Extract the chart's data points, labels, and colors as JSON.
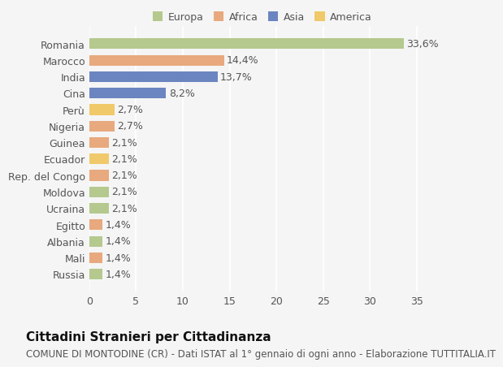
{
  "categories": [
    "Romania",
    "Marocco",
    "India",
    "Cina",
    "Perù",
    "Nigeria",
    "Guinea",
    "Ecuador",
    "Rep. del Congo",
    "Moldova",
    "Ucraina",
    "Egitto",
    "Albania",
    "Mali",
    "Russia"
  ],
  "values": [
    33.6,
    14.4,
    13.7,
    8.2,
    2.7,
    2.7,
    2.1,
    2.1,
    2.1,
    2.1,
    2.1,
    1.4,
    1.4,
    1.4,
    1.4
  ],
  "labels": [
    "33,6%",
    "14,4%",
    "13,7%",
    "8,2%",
    "2,7%",
    "2,7%",
    "2,1%",
    "2,1%",
    "2,1%",
    "2,1%",
    "2,1%",
    "1,4%",
    "1,4%",
    "1,4%",
    "1,4%"
  ],
  "colors": [
    "#b5c98e",
    "#e8a97e",
    "#6b85c0",
    "#6b85c0",
    "#f0c96a",
    "#e8a97e",
    "#e8a97e",
    "#f0c96a",
    "#e8a97e",
    "#b5c98e",
    "#b5c98e",
    "#e8a97e",
    "#b5c98e",
    "#e8a97e",
    "#b5c98e"
  ],
  "continent_colors": {
    "Europa": "#b5c98e",
    "Africa": "#e8a97e",
    "Asia": "#6b85c0",
    "America": "#f0c96a"
  },
  "xlim": [
    0,
    37
  ],
  "xticks": [
    0,
    5,
    10,
    15,
    20,
    25,
    30,
    35
  ],
  "title": "Cittadini Stranieri per Cittadinanza",
  "subtitle": "COMUNE DI MONTODINE (CR) - Dati ISTAT al 1° gennaio di ogni anno - Elaborazione TUTTITALIA.IT",
  "background_color": "#f5f5f5",
  "grid_color": "#ffffff",
  "label_fontsize": 9,
  "tick_fontsize": 9,
  "title_fontsize": 11,
  "subtitle_fontsize": 8.5
}
